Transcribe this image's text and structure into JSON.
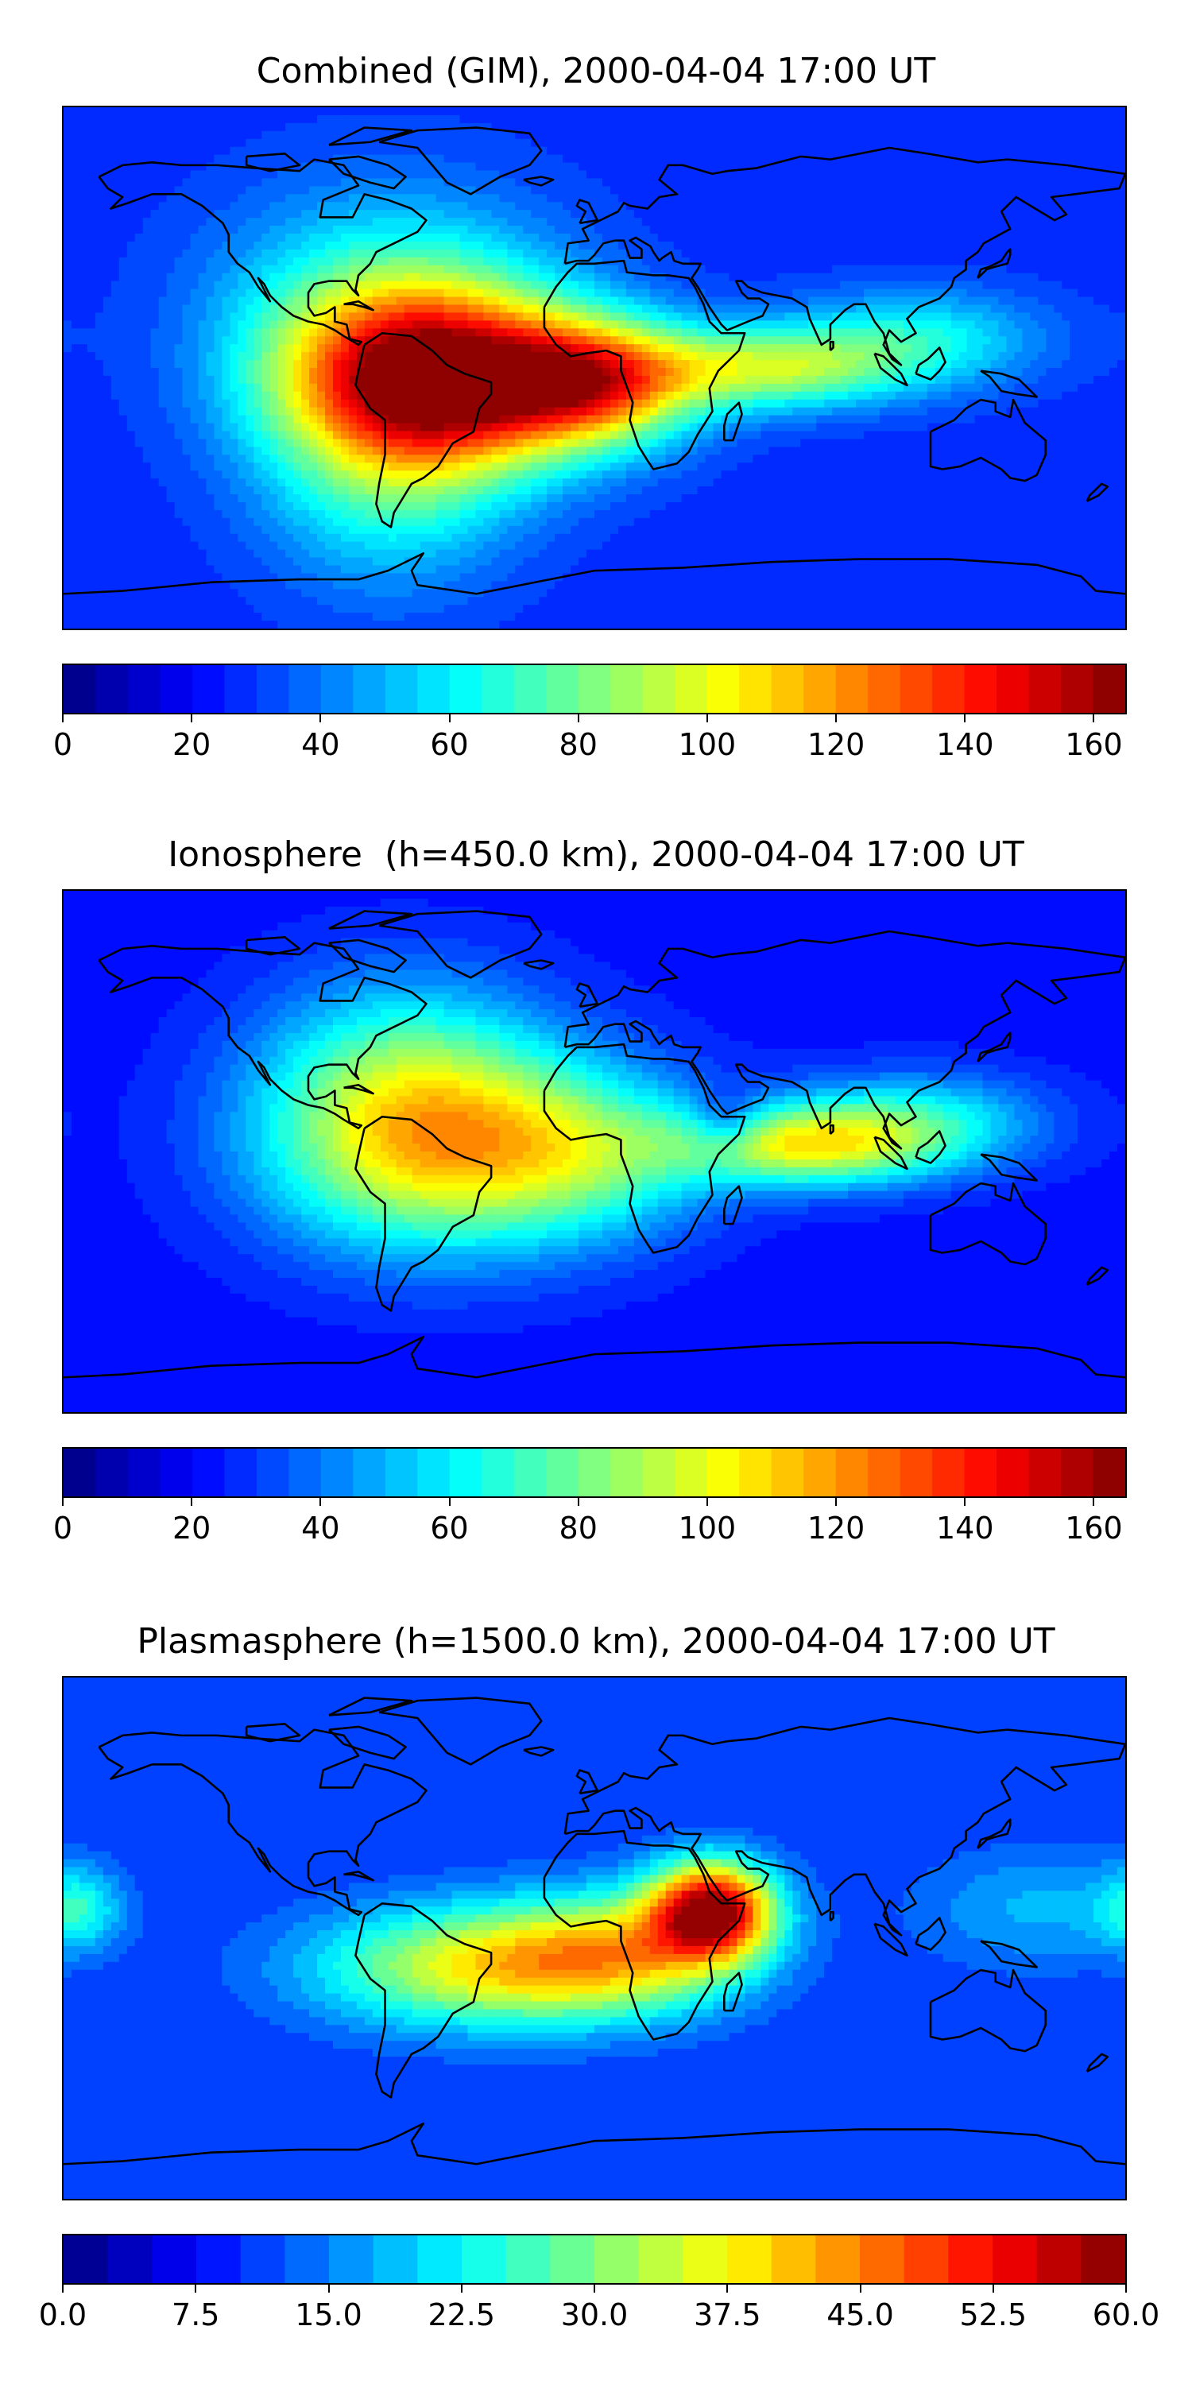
{
  "chart_data": [
    {
      "type": "heatmap",
      "title": "Combined (GIM), 2000-04-04 17:00 UT",
      "colormap": "jet",
      "colorbar": {
        "vmin": 0,
        "vmax": 165,
        "levels": 33,
        "ticks": [
          0,
          20,
          40,
          60,
          80,
          100,
          120,
          140,
          160
        ],
        "tick_labels": [
          "0",
          "20",
          "40",
          "60",
          "80",
          "100",
          "120",
          "140",
          "160"
        ]
      },
      "field": {
        "base": 27,
        "blobs": [
          {
            "lon": -55,
            "lat": -5,
            "amp": 125,
            "sx": 35,
            "sy": 22
          },
          {
            "lon": 0,
            "lat": -5,
            "amp": 90,
            "sx": 25,
            "sy": 15
          },
          {
            "lon": 60,
            "lat": 0,
            "amp": 60,
            "sx": 30,
            "sy": 10
          },
          {
            "lon": 110,
            "lat": 10,
            "amp": 35,
            "sx": 30,
            "sy": 12
          },
          {
            "lon": -70,
            "lat": 20,
            "amp": 40,
            "sx": 40,
            "sy": 30
          },
          {
            "lon": -70,
            "lat": -45,
            "amp": 30,
            "sx": 30,
            "sy": 25
          }
        ]
      }
    },
    {
      "type": "heatmap",
      "title": "Ionosphere  (h=450.0 km), 2000-04-04 17:00 UT",
      "colormap": "jet",
      "colorbar": {
        "vmin": 0,
        "vmax": 165,
        "levels": 33,
        "ticks": [
          0,
          20,
          40,
          60,
          80,
          100,
          120,
          140,
          160
        ],
        "tick_labels": [
          "0",
          "20",
          "40",
          "60",
          "80",
          "100",
          "120",
          "140",
          "160"
        ]
      },
      "field": {
        "base": 22,
        "blobs": [
          {
            "lon": -55,
            "lat": 0,
            "amp": 75,
            "sx": 40,
            "sy": 25
          },
          {
            "lon": -65,
            "lat": 30,
            "amp": 35,
            "sx": 35,
            "sy": 25
          },
          {
            "lon": 0,
            "lat": 0,
            "amp": 40,
            "sx": 30,
            "sy": 20
          },
          {
            "lon": 70,
            "lat": 2,
            "amp": 70,
            "sx": 30,
            "sy": 10
          },
          {
            "lon": 110,
            "lat": 10,
            "amp": 40,
            "sx": 30,
            "sy": 12
          },
          {
            "lon": 45,
            "lat": 10,
            "amp": -25,
            "sx": 8,
            "sy": 8
          }
        ]
      }
    },
    {
      "type": "heatmap",
      "title": "Plasmasphere (h=1500.0 km), 2000-04-04 17:00 UT",
      "colormap": "jet",
      "colorbar": {
        "vmin": 0,
        "vmax": 60,
        "levels": 24,
        "ticks": [
          0.0,
          7.5,
          15.0,
          22.5,
          30.0,
          37.5,
          45.0,
          52.5,
          60.0
        ],
        "tick_labels": [
          "0.0",
          "7.5",
          "15.0",
          "22.5",
          "30.0",
          "37.5",
          "45.0",
          "52.5",
          "60.0"
        ]
      },
      "field": {
        "base": 10,
        "blobs": [
          {
            "lon": 40,
            "lat": 10,
            "amp": 45,
            "sx": 15,
            "sy": 12
          },
          {
            "lon": -40,
            "lat": -10,
            "amp": 25,
            "sx": 40,
            "sy": 15
          },
          {
            "lon": 10,
            "lat": -5,
            "amp": 22,
            "sx": 30,
            "sy": 15
          },
          {
            "lon": -175,
            "lat": 10,
            "amp": 12,
            "sx": 10,
            "sy": 10
          },
          {
            "lon": 150,
            "lat": 10,
            "amp": 8,
            "sx": 30,
            "sy": 15
          }
        ]
      }
    }
  ]
}
